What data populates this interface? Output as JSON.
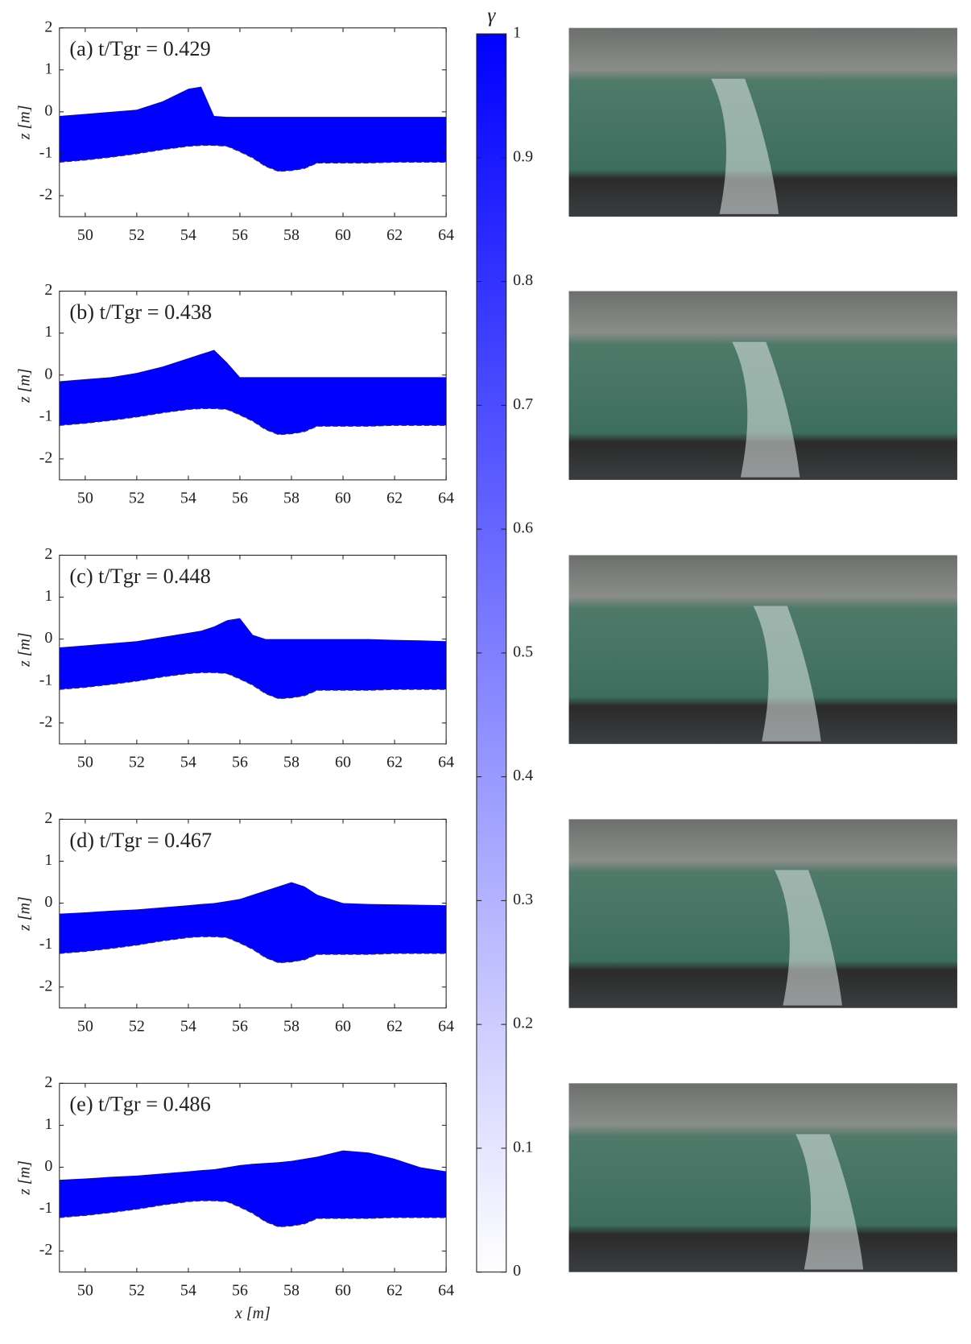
{
  "chart_data": [
    {
      "type": "area",
      "title": "(a) t/Tgr = 0.429",
      "ylabel": "z [m]",
      "color": "#0000ff",
      "x": [
        49,
        50,
        51,
        52,
        53,
        54,
        54.5,
        55,
        55.5,
        56,
        56.5,
        57,
        57.5,
        58,
        58.5,
        59,
        60,
        61,
        62,
        63,
        64
      ],
      "surface": [
        -0.1,
        -0.05,
        0,
        0.05,
        0.25,
        0.55,
        0.6,
        -0.1,
        -0.12,
        -0.12,
        -0.12,
        -0.12,
        -0.12,
        -0.12,
        -0.12,
        -0.12,
        -0.12,
        -0.12,
        -0.12,
        -0.12,
        -0.12
      ],
      "bed": [
        -1.2,
        -1.15,
        -1.08,
        -1,
        -0.9,
        -0.82,
        -0.8,
        -0.8,
        -0.82,
        -0.95,
        -1.1,
        -1.3,
        -1.42,
        -1.4,
        -1.35,
        -1.22,
        -1.22,
        -1.22,
        -1.2,
        -1.2,
        -1.2
      ],
      "xlim": [
        49,
        64
      ],
      "ylim": [
        -2.5,
        2
      ],
      "xticks": [
        50,
        52,
        54,
        56,
        58,
        60,
        62,
        64
      ],
      "yticks": [
        -2,
        -1,
        0,
        1,
        2
      ]
    },
    {
      "type": "area",
      "title": "(b) t/Tgr = 0.438",
      "ylabel": "z [m]",
      "color": "#0000ff",
      "x": [
        49,
        50,
        51,
        52,
        53,
        54,
        54.5,
        55,
        55.5,
        56,
        56.5,
        57,
        57.5,
        58,
        58.5,
        59,
        60,
        61,
        62,
        63,
        64
      ],
      "surface": [
        -0.15,
        -0.1,
        -0.05,
        0.05,
        0.2,
        0.4,
        0.5,
        0.6,
        0.3,
        -0.05,
        -0.05,
        -0.05,
        -0.05,
        -0.05,
        -0.05,
        -0.05,
        -0.05,
        -0.05,
        -0.05,
        -0.05,
        -0.05
      ],
      "bed": [
        -1.2,
        -1.15,
        -1.08,
        -1,
        -0.9,
        -0.82,
        -0.8,
        -0.8,
        -0.82,
        -0.95,
        -1.1,
        -1.3,
        -1.42,
        -1.4,
        -1.35,
        -1.22,
        -1.22,
        -1.22,
        -1.2,
        -1.2,
        -1.2
      ],
      "xlim": [
        49,
        64
      ],
      "ylim": [
        -2.5,
        2
      ],
      "xticks": [
        50,
        52,
        54,
        56,
        58,
        60,
        62,
        64
      ],
      "yticks": [
        -2,
        -1,
        0,
        1,
        2
      ]
    },
    {
      "type": "area",
      "title": "(c) t/Tgr = 0.448",
      "ylabel": "z [m]",
      "color": "#0000ff",
      "x": [
        49,
        50,
        51,
        52,
        53,
        54,
        54.5,
        55,
        55.5,
        56,
        56.5,
        57,
        57.5,
        58,
        58.5,
        59,
        60,
        61,
        62,
        63,
        64
      ],
      "surface": [
        -0.2,
        -0.15,
        -0.1,
        -0.05,
        0.05,
        0.15,
        0.2,
        0.3,
        0.45,
        0.5,
        0.1,
        0,
        0,
        0,
        0,
        0,
        0,
        0,
        -0.02,
        -0.03,
        -0.05
      ],
      "bed": [
        -1.2,
        -1.15,
        -1.08,
        -1,
        -0.9,
        -0.82,
        -0.8,
        -0.8,
        -0.82,
        -0.95,
        -1.1,
        -1.3,
        -1.42,
        -1.4,
        -1.35,
        -1.22,
        -1.22,
        -1.22,
        -1.2,
        -1.2,
        -1.2
      ],
      "xlim": [
        49,
        64
      ],
      "ylim": [
        -2.5,
        2
      ],
      "xticks": [
        50,
        52,
        54,
        56,
        58,
        60,
        62,
        64
      ],
      "yticks": [
        -2,
        -1,
        0,
        1,
        2
      ]
    },
    {
      "type": "area",
      "title": "(d) t/Tgr = 0.467",
      "ylabel": "z [m]",
      "color": "#0000ff",
      "x": [
        49,
        50,
        51,
        52,
        53,
        54,
        54.5,
        55,
        55.5,
        56,
        56.5,
        57,
        57.5,
        58,
        58.5,
        59,
        60,
        61,
        62,
        63,
        64
      ],
      "surface": [
        -0.25,
        -0.22,
        -0.18,
        -0.15,
        -0.1,
        -0.05,
        -0.02,
        0,
        0.05,
        0.1,
        0.2,
        0.3,
        0.4,
        0.5,
        0.4,
        0.2,
        0,
        -0.02,
        -0.03,
        -0.04,
        -0.05
      ],
      "bed": [
        -1.2,
        -1.15,
        -1.08,
        -1,
        -0.9,
        -0.82,
        -0.8,
        -0.8,
        -0.82,
        -0.95,
        -1.1,
        -1.3,
        -1.42,
        -1.4,
        -1.35,
        -1.22,
        -1.22,
        -1.22,
        -1.2,
        -1.2,
        -1.2
      ],
      "xlim": [
        49,
        64
      ],
      "ylim": [
        -2.5,
        2
      ],
      "xticks": [
        50,
        52,
        54,
        56,
        58,
        60,
        62,
        64
      ],
      "yticks": [
        -2,
        -1,
        0,
        1,
        2
      ]
    },
    {
      "type": "area",
      "title": "(e) t/Tgr = 0.486",
      "ylabel": "z [m]",
      "xlabel": "x [m]",
      "color": "#0000ff",
      "x": [
        49,
        50,
        51,
        52,
        53,
        54,
        54.5,
        55,
        55.5,
        56,
        56.5,
        57,
        57.5,
        58,
        58.5,
        59,
        60,
        61,
        62,
        63,
        64
      ],
      "surface": [
        -0.3,
        -0.27,
        -0.23,
        -0.2,
        -0.15,
        -0.1,
        -0.07,
        -0.05,
        0,
        0.05,
        0.08,
        0.1,
        0.12,
        0.15,
        0.2,
        0.25,
        0.4,
        0.35,
        0.2,
        0,
        -0.1
      ],
      "bed": [
        -1.2,
        -1.15,
        -1.08,
        -1,
        -0.9,
        -0.82,
        -0.8,
        -0.8,
        -0.82,
        -0.95,
        -1.1,
        -1.3,
        -1.42,
        -1.4,
        -1.35,
        -1.22,
        -1.22,
        -1.22,
        -1.2,
        -1.2,
        -1.2
      ],
      "xlim": [
        49,
        64
      ],
      "ylim": [
        -2.5,
        2
      ],
      "xticks": [
        50,
        52,
        54,
        56,
        58,
        60,
        62,
        64
      ],
      "yticks": [
        -2,
        -1,
        0,
        1,
        2
      ]
    }
  ],
  "colorbar": {
    "label": "γ",
    "lim": [
      0,
      1
    ],
    "colors": [
      "#ffffff",
      "#0000ff"
    ],
    "ticks": [
      0,
      0.1,
      0.2,
      0.3,
      0.4,
      0.5,
      0.6,
      0.7,
      0.8,
      0.9,
      1
    ]
  }
}
